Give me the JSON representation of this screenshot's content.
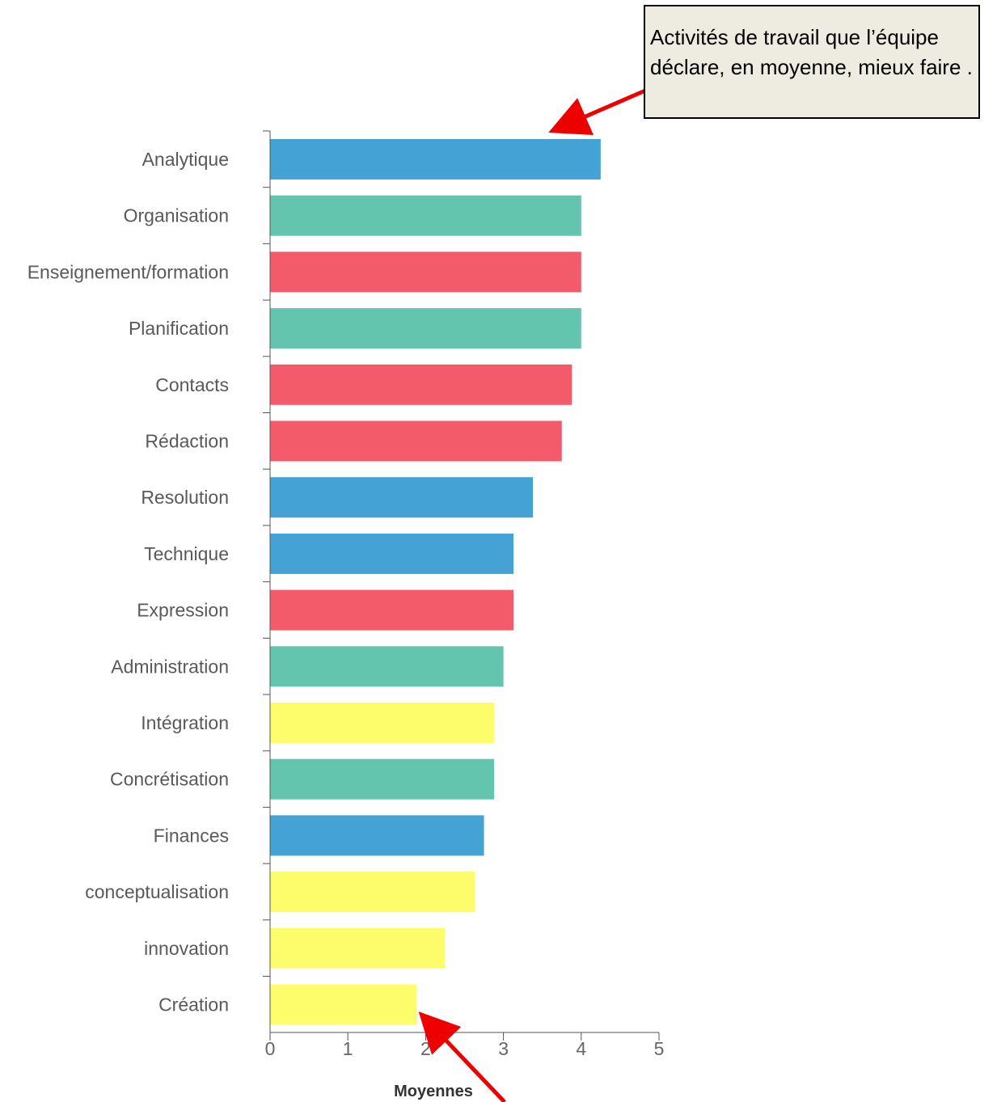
{
  "chart_data": {
    "type": "bar",
    "orientation": "horizontal",
    "categories": [
      "Analytique",
      "Organisation",
      "Enseignement/formation",
      "Planification",
      "Contacts",
      "Rédaction",
      "Resolution",
      "Technique",
      "Expression",
      "Administration",
      "Intégration",
      "Concrétisation",
      "Finances",
      "conceptualisation",
      "innovation",
      "Création"
    ],
    "values": [
      4.25,
      4.0,
      4.0,
      4.0,
      3.88,
      3.75,
      3.38,
      3.13,
      3.13,
      3.0,
      2.88,
      2.88,
      2.75,
      2.63,
      2.25,
      1.88
    ],
    "colors": [
      "#44a2d5",
      "#63c5ae",
      "#f35b6b",
      "#63c5ae",
      "#f35b6b",
      "#f35b6b",
      "#44a2d5",
      "#44a2d5",
      "#f35b6b",
      "#63c5ae",
      "#fdfd6c",
      "#63c5ae",
      "#44a2d5",
      "#fdfd6c",
      "#fdfd6c",
      "#fdfd6c"
    ],
    "xlim": [
      0,
      5
    ],
    "xticks": [
      "0",
      "1",
      "2",
      "3",
      "4",
      "5"
    ],
    "xlabel": "Moyennes",
    "ylabel": "",
    "title": "",
    "grid": false,
    "legend": "none"
  },
  "annotation": {
    "text": "Activités de travail que l’équipe déclare, en moyenne, mieux faire .",
    "arrow_color": "#ee0000",
    "box_color": "#eeece1"
  }
}
